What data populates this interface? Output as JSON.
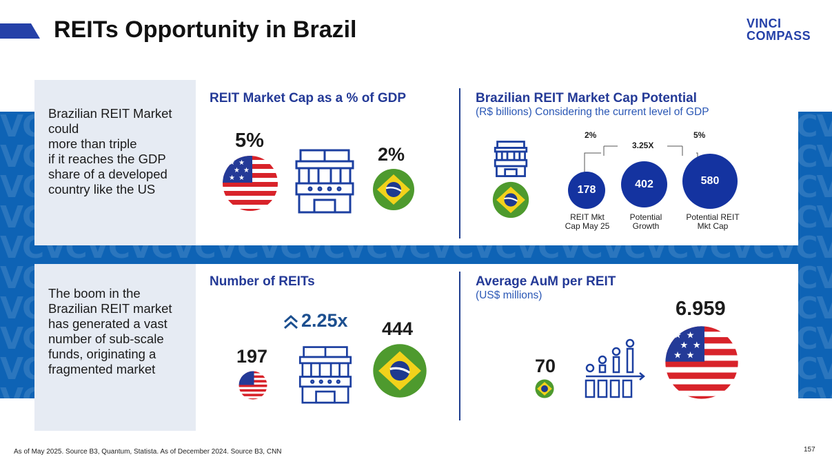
{
  "header": {
    "title": "REITs Opportunity in Brazil",
    "logo_line1": "VINCI",
    "logo_line2": "COMPASS"
  },
  "colors": {
    "brand_navy": "#243a97",
    "band_blue": "#0e63b5",
    "circle_blue": "#1433a0",
    "divider": "#1e3d8f"
  },
  "top": {
    "side_text": "Brazilian REIT Market could\nmore than triple\nif it reaches the GDP share of a developed country like the US",
    "left": {
      "title": "REIT Market Cap as a % of GDP",
      "us_value": "5%",
      "br_value": "2%",
      "us_icon": "us-flag-icon",
      "building_icon": "building-icon",
      "br_icon": "brazil-flag-icon"
    },
    "right": {
      "title": "Brazilian REIT Market Cap Potential",
      "subtitle": "(R$ billions) Considering the current level of GDP",
      "pct_left": "2%",
      "multiplier": "3.25X",
      "pct_right": "5%",
      "circles": [
        {
          "value": "178",
          "label": "REIT Mkt\nCap May 25"
        },
        {
          "value": "402",
          "label": "Potential\nGrowth"
        },
        {
          "value": "580",
          "label": "Potential REIT\nMkt Cap"
        }
      ]
    }
  },
  "bottom": {
    "side_text": "The boom in the Brazilian REIT market has generated a vast number of sub-scale funds, originating a fragmented market",
    "left": {
      "title": "Number of REITs",
      "us_value": "197",
      "growth": "2.25x",
      "br_value": "444"
    },
    "right": {
      "title": "Average AuM per REIT",
      "subtitle": "(US$ millions)",
      "br_value": "70",
      "us_value": "6.959",
      "chart_icon": "growth-chart-icon"
    }
  },
  "footer": {
    "source": "As of May 2025. Source B3, Quantum, Statista. As of December 2024. Source B3, CNN",
    "page_number": "157"
  }
}
